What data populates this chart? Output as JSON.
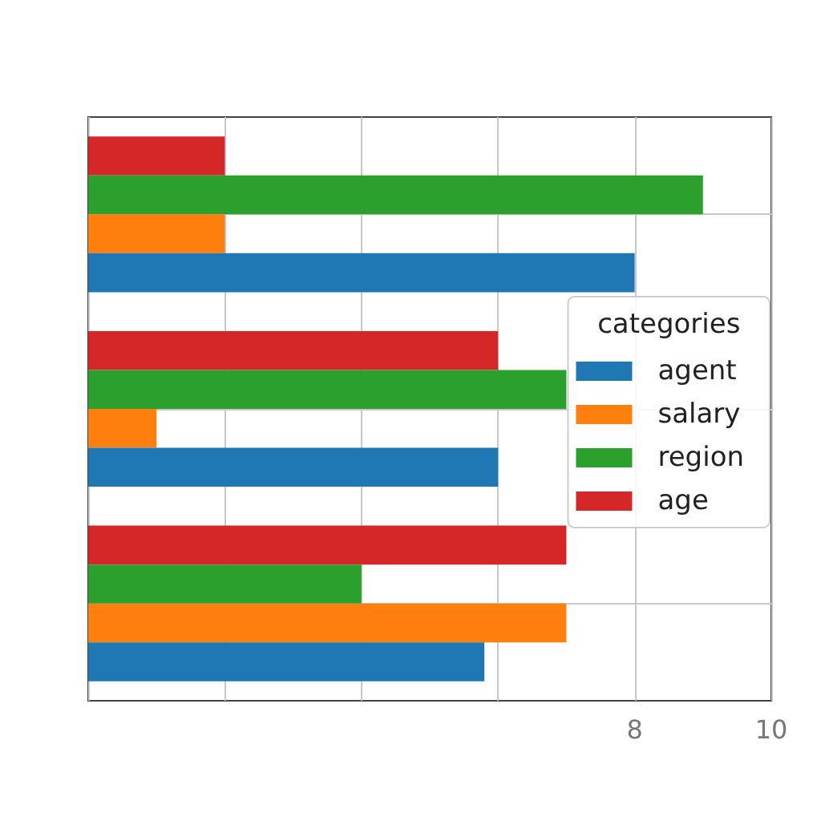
{
  "chart_data": {
    "type": "bar",
    "orientation": "horizontal",
    "categories": [
      null,
      null,
      null
    ],
    "series": [
      {
        "name": "agent",
        "color": "#1f77b4",
        "values": [
          8,
          6,
          5.8
        ]
      },
      {
        "name": "salary",
        "color": "#ff7f0e",
        "values": [
          2,
          1,
          7
        ]
      },
      {
        "name": "region",
        "color": "#2ca02c",
        "values": [
          9,
          7,
          4
        ]
      },
      {
        "name": "age",
        "color": "#d62728",
        "values": [
          2,
          6,
          7
        ]
      }
    ],
    "xlim": [
      0,
      10
    ],
    "xticks": [
      {
        "value": 0,
        "label": null
      },
      {
        "value": 2,
        "label": null
      },
      {
        "value": 4,
        "label": null
      },
      {
        "value": 6,
        "label": null
      },
      8,
      10
    ],
    "grid": true,
    "legend": "right",
    "legend_title": "categories"
  }
}
